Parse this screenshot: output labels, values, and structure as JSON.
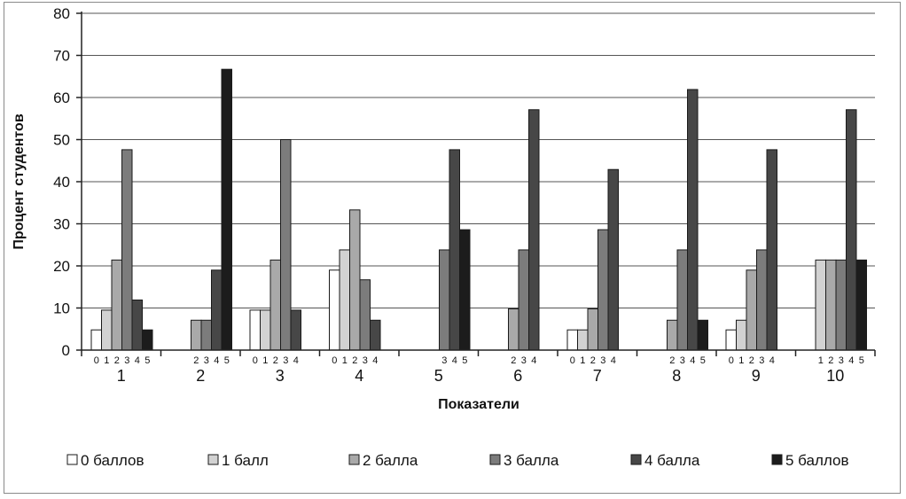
{
  "chart_data": {
    "type": "bar",
    "title": "",
    "xlabel": "Показатели",
    "ylabel": "Процент студентов",
    "ylim": [
      0,
      80
    ],
    "yticks": [
      "0",
      "10",
      "20",
      "30",
      "40",
      "50",
      "60",
      "70",
      "80"
    ],
    "categories": [
      "1",
      "2",
      "3",
      "4",
      "5",
      "6",
      "7",
      "8",
      "9",
      "10"
    ],
    "grid": true,
    "legend_position": "bottom",
    "series": [
      {
        "name": "0 баллов",
        "key": "0",
        "color": "#ffffff",
        "values": [
          4.8,
          0,
          9.5,
          19,
          0,
          0,
          4.8,
          0,
          4.8,
          0
        ]
      },
      {
        "name": "1 балл",
        "key": "1",
        "color": "#d2d2d2",
        "values": [
          9.5,
          0,
          9.5,
          23.8,
          0,
          0,
          4.8,
          0,
          7.1,
          21.4
        ]
      },
      {
        "name": "2 балла",
        "key": "2",
        "color": "#a9a9a9",
        "values": [
          21.4,
          7.1,
          21.4,
          33.3,
          0,
          9.8,
          9.8,
          7.1,
          19,
          21.4
        ]
      },
      {
        "name": "3 балла",
        "key": "3",
        "color": "#7c7c7c",
        "values": [
          47.6,
          7.1,
          50,
          16.7,
          23.8,
          23.8,
          28.6,
          23.8,
          23.8,
          21.4
        ]
      },
      {
        "name": "4 балла",
        "key": "4",
        "color": "#474747",
        "values": [
          11.9,
          19,
          9.5,
          7.1,
          47.6,
          57.1,
          42.9,
          61.9,
          47.6,
          57.1
        ]
      },
      {
        "name": "5 баллов",
        "key": "5",
        "color": "#1c1c1c",
        "values": [
          4.8,
          66.7,
          0,
          0,
          28.6,
          0,
          0,
          7.1,
          0,
          21.4
        ]
      }
    ]
  }
}
